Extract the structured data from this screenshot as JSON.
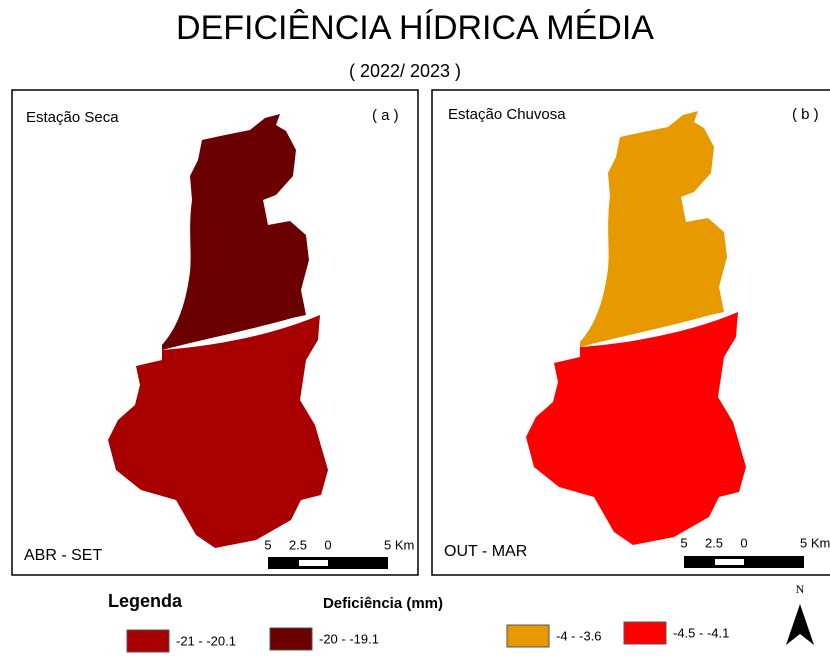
{
  "title": "DEFICIÊNCIA HÍDRICA MÉDIA",
  "subtitle": "( 2022/ 2023 )",
  "panels": [
    {
      "label": "Estação Seca",
      "letter": "( a )",
      "period": "ABR - SET",
      "scale": [
        "5",
        "2.5",
        "0",
        "5 Km"
      ]
    },
    {
      "label": "Estação Chuvosa",
      "letter": "( b )",
      "period": "OUT - MAR",
      "scale": [
        "5",
        "2.5",
        "0",
        "5 Km"
      ]
    }
  ],
  "legend": {
    "title": "Legenda",
    "unit": "Deficiência (mm)",
    "items": [
      {
        "label": "-21 - -20.1",
        "color": "#a80000"
      },
      {
        "label": "-20 - -19.1",
        "color": "#6b0000"
      },
      {
        "label": "-4 - -3.6",
        "color": "#e69a00"
      },
      {
        "label": "-4.5 - -4.1",
        "color": "#ff0000"
      }
    ]
  },
  "north": "N"
}
